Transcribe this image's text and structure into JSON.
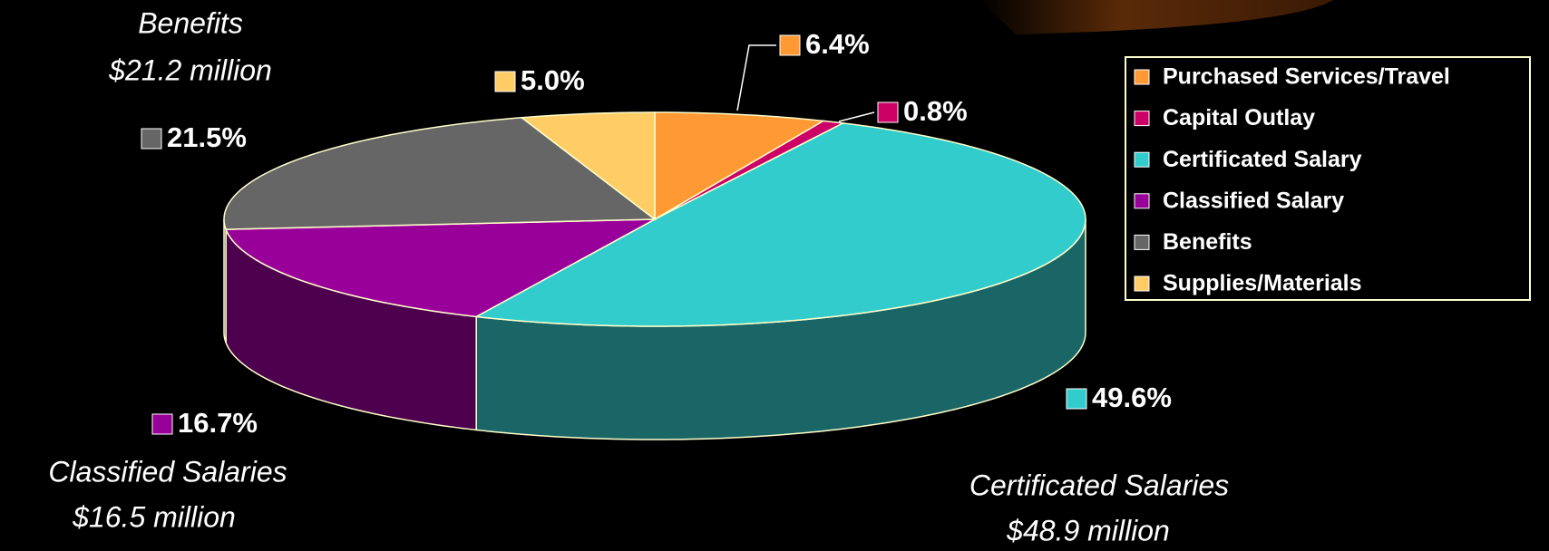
{
  "chart_data": {
    "type": "pie3d",
    "categories": [
      "Purchased Services/Travel",
      "Capital Outlay",
      "Certificated Salary",
      "Classified Salary",
      "Benefits",
      "Supplies/Materials"
    ],
    "values": [
      6.4,
      0.8,
      49.6,
      16.7,
      21.5,
      5.0
    ],
    "value_labels": [
      "6.4%",
      "0.8%",
      "49.6%",
      "16.7%",
      "21.5%",
      "5.0%"
    ],
    "colors": [
      "#ff9933",
      "#cc0066",
      "#33cccc",
      "#990099",
      "#666666",
      "#ffcc66"
    ],
    "legend": "top-right",
    "annotations": [
      "Benefits",
      "$21.2 million",
      "Classified Salaries",
      "$16.5 million",
      "Certificated Salaries",
      "$48.9 million"
    ]
  }
}
